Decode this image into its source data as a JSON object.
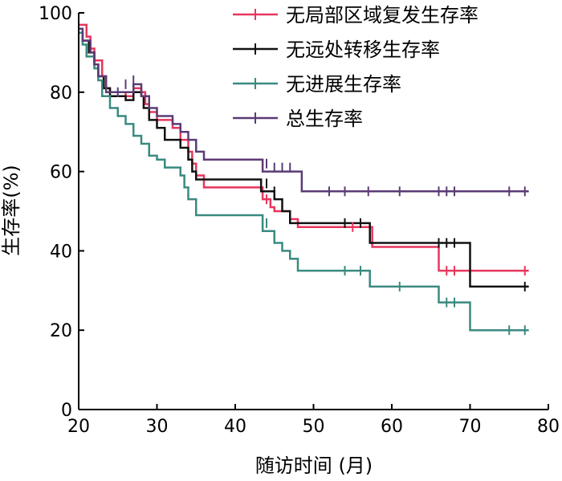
{
  "chart_data": {
    "type": "line",
    "step": true,
    "xlabel": "随访时间 (月)",
    "ylabel": "生存率(%)",
    "xlim": [
      20,
      80
    ],
    "ylim": [
      0,
      100
    ],
    "xticks": [
      20,
      30,
      40,
      50,
      60,
      70,
      80
    ],
    "yticks": [
      0,
      20,
      40,
      60,
      80,
      100
    ],
    "grid": false,
    "legend_position": "top-right",
    "series": [
      {
        "name": "无局部区域复发生存率",
        "color": "#e8365d",
        "points": [
          [
            20,
            97
          ],
          [
            21,
            94
          ],
          [
            21.5,
            91
          ],
          [
            22,
            88
          ],
          [
            23,
            84
          ],
          [
            23.5,
            81
          ],
          [
            24,
            80
          ],
          [
            26,
            79
          ],
          [
            27,
            81
          ],
          [
            28,
            80
          ],
          [
            28.5,
            77
          ],
          [
            29,
            75
          ],
          [
            30,
            73
          ],
          [
            32,
            71
          ],
          [
            33,
            68
          ],
          [
            34,
            65
          ],
          [
            34.5,
            62
          ],
          [
            35,
            59
          ],
          [
            36,
            56
          ],
          [
            43,
            56
          ],
          [
            43.5,
            53
          ],
          [
            44.5,
            51
          ],
          [
            45,
            50
          ],
          [
            47,
            48
          ],
          [
            48,
            46
          ],
          [
            57,
            46
          ],
          [
            57.5,
            41
          ],
          [
            66,
            41
          ],
          [
            66,
            35
          ],
          [
            77.5,
            35
          ]
        ],
        "censors": [
          [
            44,
            53
          ],
          [
            55,
            46
          ],
          [
            67,
            35
          ],
          [
            68,
            35
          ],
          [
            77,
            35
          ]
        ]
      },
      {
        "name": "无远处转移生存率",
        "color": "#111111",
        "points": [
          [
            20,
            95
          ],
          [
            20.5,
            93
          ],
          [
            21.3,
            90
          ],
          [
            22,
            87
          ],
          [
            22.5,
            84
          ],
          [
            23.2,
            81
          ],
          [
            24,
            79
          ],
          [
            26,
            78
          ],
          [
            27,
            80
          ],
          [
            28,
            79
          ],
          [
            28.3,
            76
          ],
          [
            29,
            73
          ],
          [
            30,
            71
          ],
          [
            31,
            68
          ],
          [
            33,
            66
          ],
          [
            34,
            63
          ],
          [
            34.5,
            60
          ],
          [
            35,
            58
          ],
          [
            43,
            58
          ],
          [
            43.3,
            55
          ],
          [
            45,
            53
          ],
          [
            46,
            50
          ],
          [
            47,
            47
          ],
          [
            57,
            47
          ],
          [
            57.2,
            42
          ],
          [
            70,
            42
          ],
          [
            70,
            31
          ],
          [
            77.5,
            31
          ]
        ],
        "censors": [
          [
            44,
            57
          ],
          [
            45,
            55
          ],
          [
            54,
            47
          ],
          [
            56,
            47
          ],
          [
            66,
            42
          ],
          [
            67,
            42
          ],
          [
            68,
            42
          ],
          [
            77,
            31
          ]
        ]
      },
      {
        "name": "无进展生存率",
        "color": "#3a8a80",
        "points": [
          [
            20,
            95
          ],
          [
            20.5,
            92
          ],
          [
            21,
            89
          ],
          [
            22,
            86
          ],
          [
            22.5,
            83
          ],
          [
            23,
            79
          ],
          [
            24,
            76
          ],
          [
            25,
            74
          ],
          [
            26,
            72
          ],
          [
            27,
            69
          ],
          [
            28,
            67
          ],
          [
            29,
            64
          ],
          [
            30,
            63
          ],
          [
            31,
            61
          ],
          [
            33,
            59
          ],
          [
            33.5,
            56
          ],
          [
            34,
            53
          ],
          [
            35,
            49
          ],
          [
            43,
            49
          ],
          [
            43.5,
            45
          ],
          [
            45,
            42
          ],
          [
            46,
            40
          ],
          [
            47,
            38
          ],
          [
            48,
            35
          ],
          [
            57,
            35
          ],
          [
            57.2,
            31
          ],
          [
            66,
            31
          ],
          [
            66,
            27
          ],
          [
            68,
            27
          ],
          [
            70,
            20
          ],
          [
            77.5,
            20
          ]
        ],
        "censors": [
          [
            44,
            47
          ],
          [
            54,
            35
          ],
          [
            56,
            35
          ],
          [
            61,
            31
          ],
          [
            67,
            27
          ],
          [
            68,
            27
          ],
          [
            75,
            20
          ],
          [
            77,
            20
          ]
        ]
      },
      {
        "name": "总生存率",
        "color": "#5b3b76",
        "points": [
          [
            20,
            96
          ],
          [
            20.5,
            93
          ],
          [
            21.5,
            90
          ],
          [
            22,
            87
          ],
          [
            22.5,
            84
          ],
          [
            23.5,
            80
          ],
          [
            26,
            80
          ],
          [
            27,
            82
          ],
          [
            28,
            79
          ],
          [
            29,
            76
          ],
          [
            30,
            74
          ],
          [
            32,
            72
          ],
          [
            33,
            70
          ],
          [
            34,
            68
          ],
          [
            35,
            65
          ],
          [
            36,
            63
          ],
          [
            43,
            63
          ],
          [
            43.5,
            60
          ],
          [
            48,
            60
          ],
          [
            48.5,
            55
          ],
          [
            77.5,
            55
          ]
        ],
        "censors": [
          [
            25,
            80
          ],
          [
            26,
            82
          ],
          [
            27,
            83
          ],
          [
            28,
            80
          ],
          [
            44,
            62
          ],
          [
            45,
            61
          ],
          [
            46,
            61
          ],
          [
            47,
            61
          ],
          [
            52,
            55
          ],
          [
            54,
            55
          ],
          [
            57,
            55
          ],
          [
            61,
            55
          ],
          [
            66,
            55
          ],
          [
            67,
            55
          ],
          [
            68,
            55
          ],
          [
            75,
            55
          ],
          [
            77,
            55
          ]
        ]
      }
    ]
  }
}
